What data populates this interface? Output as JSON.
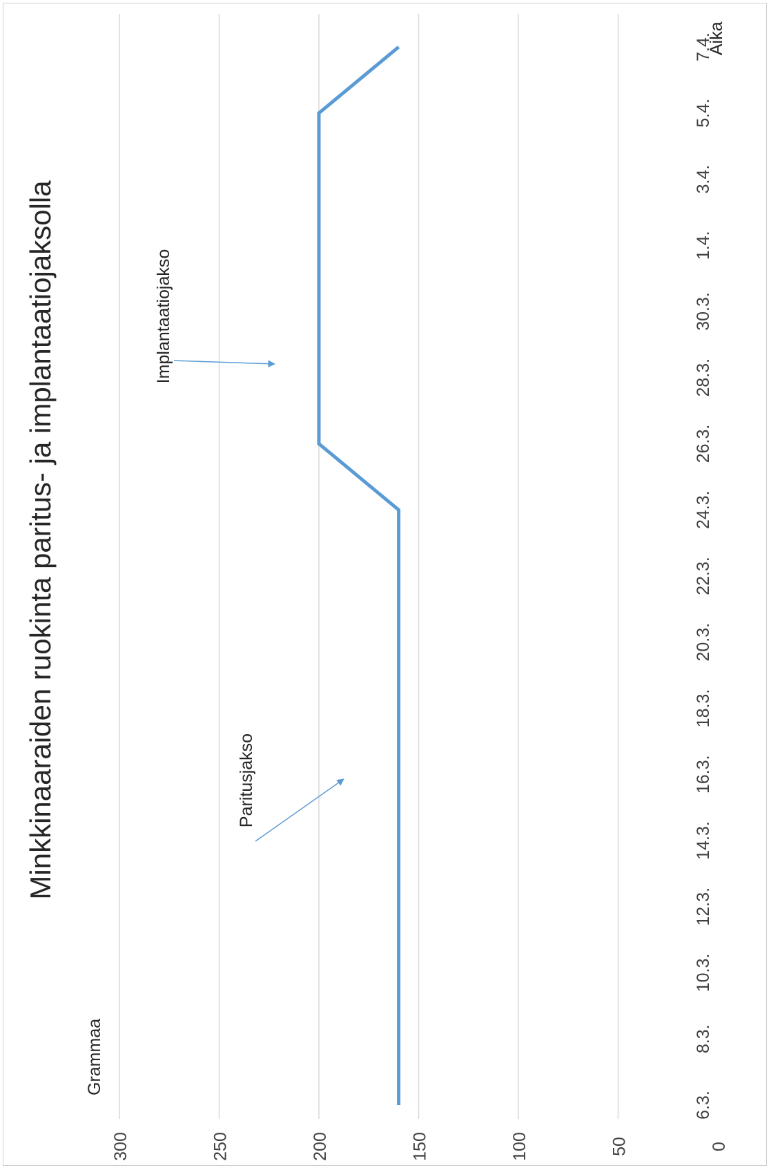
{
  "chart_data": {
    "type": "line",
    "title": "Minkkinaaraiden ruokinta paritus- ja implantaatiojaksolla",
    "xlabel": "Aika",
    "ylabel": "Grammaa",
    "ylim": [
      0,
      300
    ],
    "yticks": [
      "0",
      "50",
      "100",
      "150",
      "200",
      "250",
      "300"
    ],
    "categories": [
      "6.3.",
      "8.3.",
      "10.3.",
      "12.3.",
      "14.3.",
      "16.3.",
      "18.3.",
      "20.3.",
      "22.3.",
      "24.3.",
      "26.3.",
      "28.3.",
      "30.3.",
      "1.4.",
      "3.4.",
      "5.4.",
      "7.4."
    ],
    "series": [
      {
        "color": "#5b9bd5",
        "points": [
          {
            "x": "6.3.",
            "y": 160
          },
          {
            "x": "24.3.",
            "y": 160
          },
          {
            "x": "26.3.",
            "y": 200
          },
          {
            "x": "5.4.",
            "y": 200
          },
          {
            "x": "7.4.",
            "y": 160
          }
        ]
      }
    ],
    "annotations": [
      {
        "text": "Paritusjakso",
        "points_to_x": "14.3.",
        "points_to_y": 175
      },
      {
        "text": "Implantaatiojakso",
        "points_to_x": "28.3.",
        "points_to_y": 212
      }
    ],
    "grid": true,
    "orientation": "rotated 90° counter-clockwise"
  }
}
